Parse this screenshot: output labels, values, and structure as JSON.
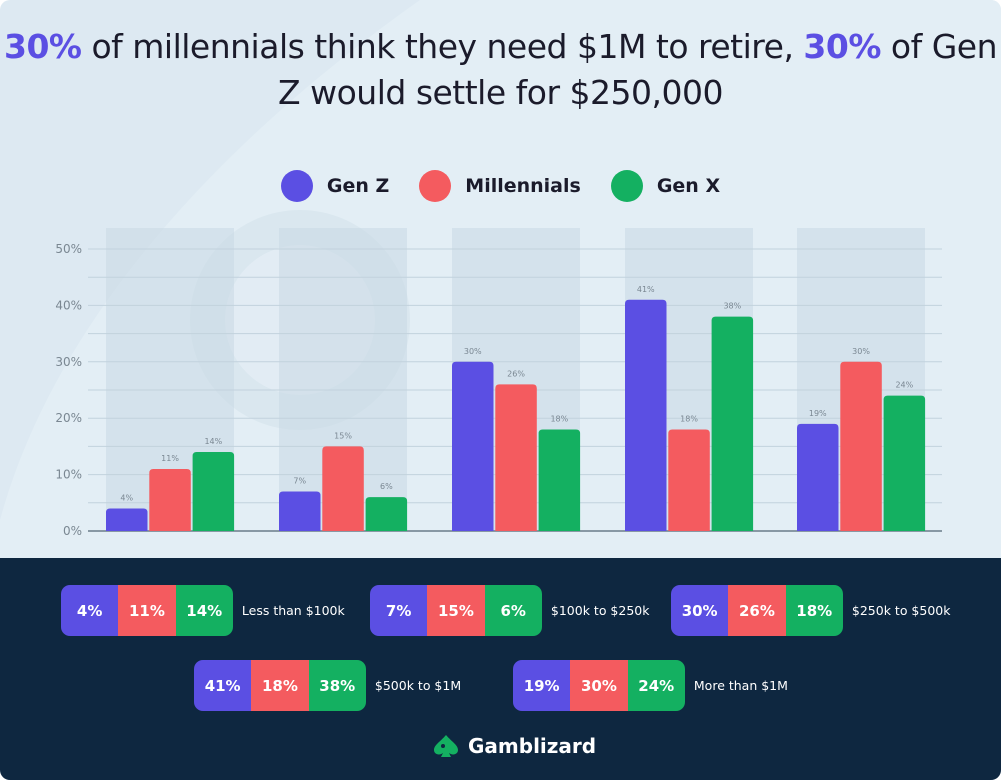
{
  "title": {
    "hl1": "30%",
    "part1": " of millennials think they need $1M to retire, ",
    "hl2": "30%",
    "part2": " of Gen Z would settle for $250,000"
  },
  "colors": {
    "gen_z": "#5b4fe3",
    "millennials": "#f45b5f",
    "gen_x": "#14b061",
    "accent": "#5b4fe3",
    "bottom_bg": "#0e2740"
  },
  "chart_data": {
    "type": "bar",
    "categories": [
      "Less than $100k",
      "$100k to $250k",
      "$250k to $500k",
      "$500k to $1M",
      "More than $1M"
    ],
    "series": [
      {
        "name": "Gen Z",
        "values": [
          4,
          7,
          30,
          41,
          19
        ]
      },
      {
        "name": "Millennials",
        "values": [
          11,
          15,
          26,
          18,
          30
        ]
      },
      {
        "name": "Gen X",
        "values": [
          14,
          6,
          18,
          38,
          24
        ]
      }
    ],
    "ylim": [
      0,
      50
    ],
    "yticks": [
      "0%",
      "10%",
      "20%",
      "30%",
      "40%",
      "50%"
    ],
    "grid": true,
    "legend": "top-center"
  },
  "brand": {
    "name": "Gamblizard",
    "logo_icon": "spade-lizard-icon"
  }
}
